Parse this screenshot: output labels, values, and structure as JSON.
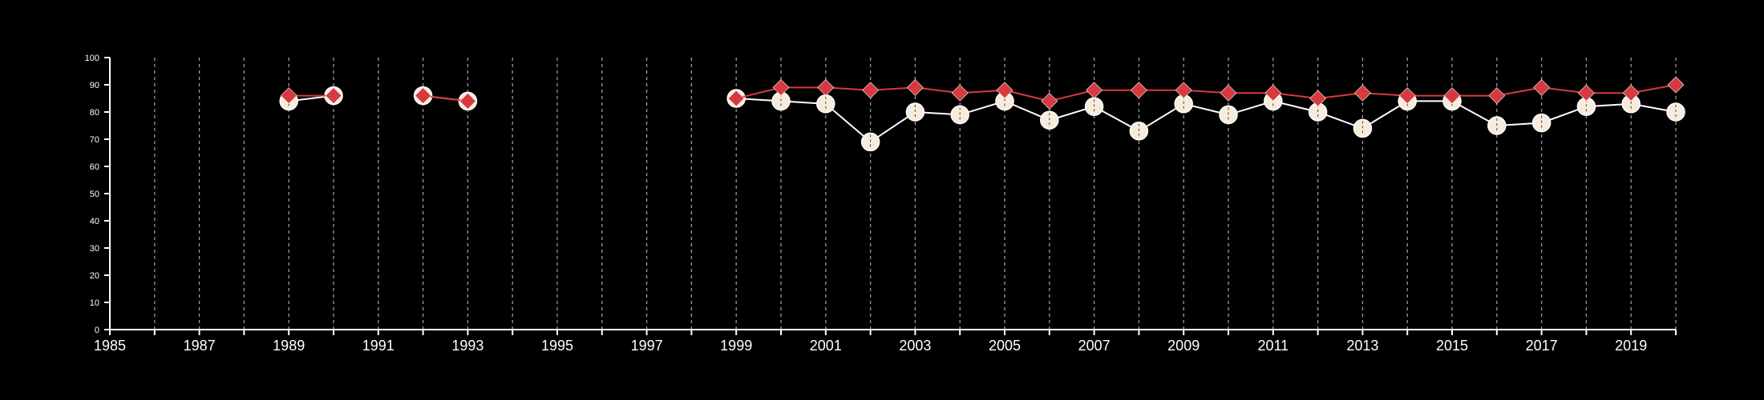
{
  "chart_data": {
    "type": "line",
    "title": "",
    "xlabel": "",
    "ylabel": "",
    "xlim": [
      1985,
      2020
    ],
    "ylim": [
      0,
      100
    ],
    "x_ticks": [
      1985,
      1987,
      1989,
      1991,
      1993,
      1995,
      1997,
      1999,
      2001,
      2003,
      2005,
      2007,
      2009,
      2011,
      2013,
      2015,
      2017,
      2019
    ],
    "y_ticks": [
      0,
      10,
      20,
      30,
      40,
      50,
      60,
      70,
      80,
      90,
      100
    ],
    "grid": {
      "vertical": true,
      "horizontal": false,
      "style": "dashed",
      "every_year": true
    },
    "legend": "none",
    "series": [
      {
        "marker": "circle",
        "color": "#ffffff",
        "marker_fill": "#f7ebdc",
        "points": [
          [
            1989,
            84
          ],
          [
            1990,
            86
          ],
          null,
          [
            1992,
            86
          ],
          [
            1993,
            84
          ],
          null,
          [
            1999,
            85
          ],
          [
            2000,
            84
          ],
          [
            2001,
            83
          ],
          [
            2002,
            69
          ],
          [
            2003,
            80
          ],
          [
            2004,
            79
          ],
          [
            2005,
            84
          ],
          [
            2006,
            77
          ],
          [
            2007,
            82
          ],
          [
            2008,
            73
          ],
          [
            2009,
            83
          ],
          [
            2010,
            79
          ],
          [
            2011,
            84
          ],
          [
            2012,
            80
          ],
          [
            2013,
            74
          ],
          [
            2014,
            84
          ],
          [
            2015,
            84
          ],
          [
            2016,
            75
          ],
          [
            2017,
            76
          ],
          [
            2018,
            82
          ],
          [
            2019,
            83
          ],
          [
            2020,
            80
          ]
        ]
      },
      {
        "marker": "diamond",
        "color": "#d63a3f",
        "points": [
          [
            1989,
            86
          ],
          [
            1990,
            86
          ],
          null,
          [
            1992,
            86
          ],
          [
            1993,
            84
          ],
          null,
          [
            1999,
            85
          ],
          [
            2000,
            89
          ],
          [
            2001,
            89
          ],
          [
            2002,
            88
          ],
          [
            2003,
            89
          ],
          [
            2004,
            87
          ],
          [
            2005,
            88
          ],
          [
            2006,
            84
          ],
          [
            2007,
            88
          ],
          [
            2008,
            88
          ],
          [
            2009,
            88
          ],
          [
            2010,
            87
          ],
          [
            2011,
            87
          ],
          [
            2012,
            85
          ],
          [
            2013,
            87
          ],
          [
            2014,
            86
          ],
          [
            2015,
            86
          ],
          [
            2016,
            86
          ],
          [
            2017,
            89
          ],
          [
            2018,
            87
          ],
          [
            2019,
            87
          ],
          [
            2020,
            90
          ]
        ]
      }
    ]
  }
}
